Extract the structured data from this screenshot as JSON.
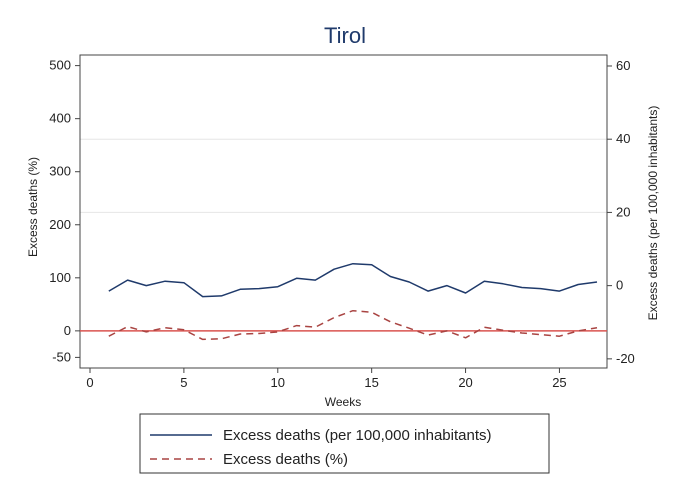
{
  "chart_data": {
    "type": "line",
    "title": "Tirol",
    "xlabel": "Weeks",
    "ylabel_left": "Excess deaths (%)",
    "ylabel_right": "Excess deaths (per 100,000 inhabitants)",
    "xlim": [
      0,
      27
    ],
    "xticks": [
      0,
      5,
      10,
      15,
      20,
      25
    ],
    "ylim_left": [
      -70,
      520
    ],
    "yticks_left": [
      -50,
      0,
      100,
      200,
      300,
      400,
      500
    ],
    "ylim_right": [
      -22.5,
      63
    ],
    "yticks_right": [
      -20,
      0,
      20,
      40,
      60
    ],
    "grid_right_y": [
      20,
      40
    ],
    "reference_line_left": 0,
    "reference_color": "#d9534f",
    "legend_position": "bottom",
    "x": [
      1,
      2,
      3,
      4,
      5,
      6,
      7,
      8,
      9,
      10,
      11,
      12,
      13,
      14,
      15,
      16,
      17,
      18,
      19,
      20,
      21,
      22,
      23,
      24,
      25,
      26,
      27
    ],
    "series": [
      {
        "name": "Excess deaths (per 100,000 inhabitants)",
        "axis": "right",
        "style": "solid",
        "color": "#1f3a6b",
        "values": [
          -1.5,
          1.5,
          0,
          1.2,
          0.8,
          -3,
          -2.8,
          -1,
          -0.8,
          -0.3,
          2,
          1.5,
          4.5,
          6,
          5.7,
          2.5,
          1,
          -1.5,
          0,
          -2,
          1.2,
          0.5,
          -0.5,
          -0.8,
          -1.5,
          0.3,
          1
        ]
      },
      {
        "name": "Excess deaths (%)",
        "axis": "left",
        "style": "dashed",
        "color": "#a94442",
        "values": [
          -10,
          8,
          -2,
          6,
          2,
          -16,
          -15,
          -6,
          -5,
          -2,
          10,
          7,
          25,
          38,
          35,
          17,
          5,
          -8,
          0,
          -13,
          7,
          1,
          -4,
          -7,
          -10,
          0,
          6
        ]
      }
    ]
  }
}
